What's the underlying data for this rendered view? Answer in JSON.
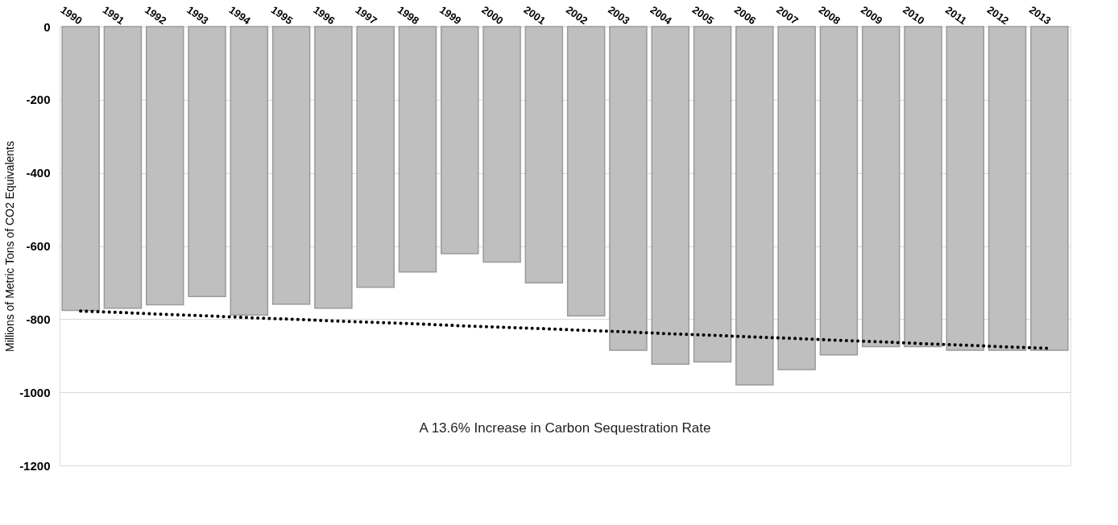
{
  "chart_data": {
    "type": "bar",
    "ylabel": "Millions of Metric Tons of CO2 Equivalents",
    "categories": [
      "1990",
      "1991",
      "1992",
      "1993",
      "1994",
      "1995",
      "1996",
      "1997",
      "1998",
      "1999",
      "2000",
      "2001",
      "2002",
      "2003",
      "2004",
      "2005",
      "2006",
      "2007",
      "2008",
      "2009",
      "2010",
      "2011",
      "2012",
      "2013"
    ],
    "series": [
      {
        "color": "#bfbfbf",
        "values": [
          -776,
          -770,
          -761,
          -738,
          -789,
          -759,
          -770,
          -713,
          -671,
          -621,
          -644,
          -701,
          -791,
          -885,
          -923,
          -917,
          -980,
          -938,
          -898,
          -875,
          -875,
          -885,
          -885,
          -885
        ]
      },
      {
        "type": "line",
        "color": "#000000",
        "line_style": "dotted",
        "values": [
          -778,
          -782,
          -787,
          -791,
          -796,
          -800,
          -805,
          -809,
          -813,
          -818,
          -822,
          -826,
          -831,
          -835,
          -840,
          -844,
          -849,
          -853,
          -858,
          -862,
          -867,
          -871,
          -876,
          -880
        ]
      }
    ],
    "ylim": [
      -1200,
      0
    ],
    "yticks": [
      -1200,
      -1000,
      -800,
      -600,
      -400,
      -200,
      0
    ],
    "grid": "y",
    "annotations": [
      "A 13.6% Increase in Carbon Sequestration Rate"
    ]
  }
}
